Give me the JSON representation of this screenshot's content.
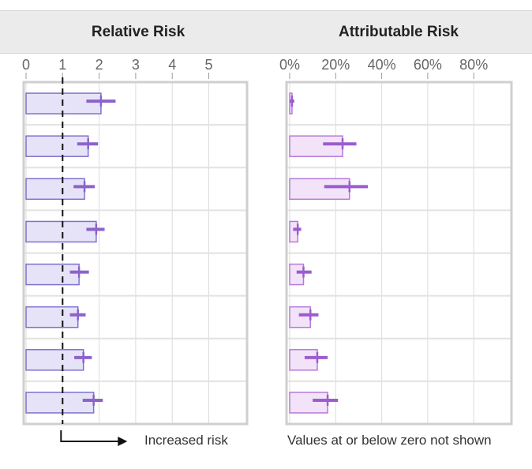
{
  "chart_data": [
    {
      "type": "bar",
      "title": "Relative Risk",
      "orientation": "horizontal",
      "xlim": [
        0,
        6
      ],
      "xticks": [
        0,
        1,
        2,
        3,
        4,
        5
      ],
      "tick_labels": [
        "0",
        "1",
        "2",
        "3",
        "4",
        "5"
      ],
      "reference_line": 1,
      "values": [
        2.05,
        1.7,
        1.6,
        1.92,
        1.45,
        1.42,
        1.57,
        1.85
      ],
      "ci_low": [
        1.65,
        1.4,
        1.3,
        1.65,
        1.2,
        1.2,
        1.32,
        1.55
      ],
      "ci_high": [
        2.45,
        1.97,
        1.88,
        2.15,
        1.72,
        1.63,
        1.8,
        2.1
      ],
      "bar_color": "#e6e3f8",
      "bar_stroke": "#7b72cc",
      "ci_color": "#8b63c9",
      "annotation": "Increased risk",
      "grid": true
    },
    {
      "type": "bar",
      "title": "Attributable Risk",
      "orientation": "horizontal",
      "xlim": [
        0,
        100
      ],
      "xticks": [
        0,
        20,
        40,
        60,
        80
      ],
      "tick_labels": [
        "0%",
        "20%",
        "40%",
        "60%",
        "80%"
      ],
      "values": [
        1,
        23,
        26,
        3.5,
        6,
        9,
        12,
        16.5
      ],
      "ci_low": [
        0,
        14.5,
        15,
        1.5,
        3,
        4,
        6.5,
        10
      ],
      "ci_high": [
        2,
        29,
        34,
        5,
        9.5,
        12.5,
        16.5,
        21
      ],
      "bar_color": "#f3e3f8",
      "bar_stroke": "#b57ad9",
      "ci_color": "#9c5ccf",
      "annotation": "Values at or below zero not shown",
      "grid": true
    }
  ]
}
